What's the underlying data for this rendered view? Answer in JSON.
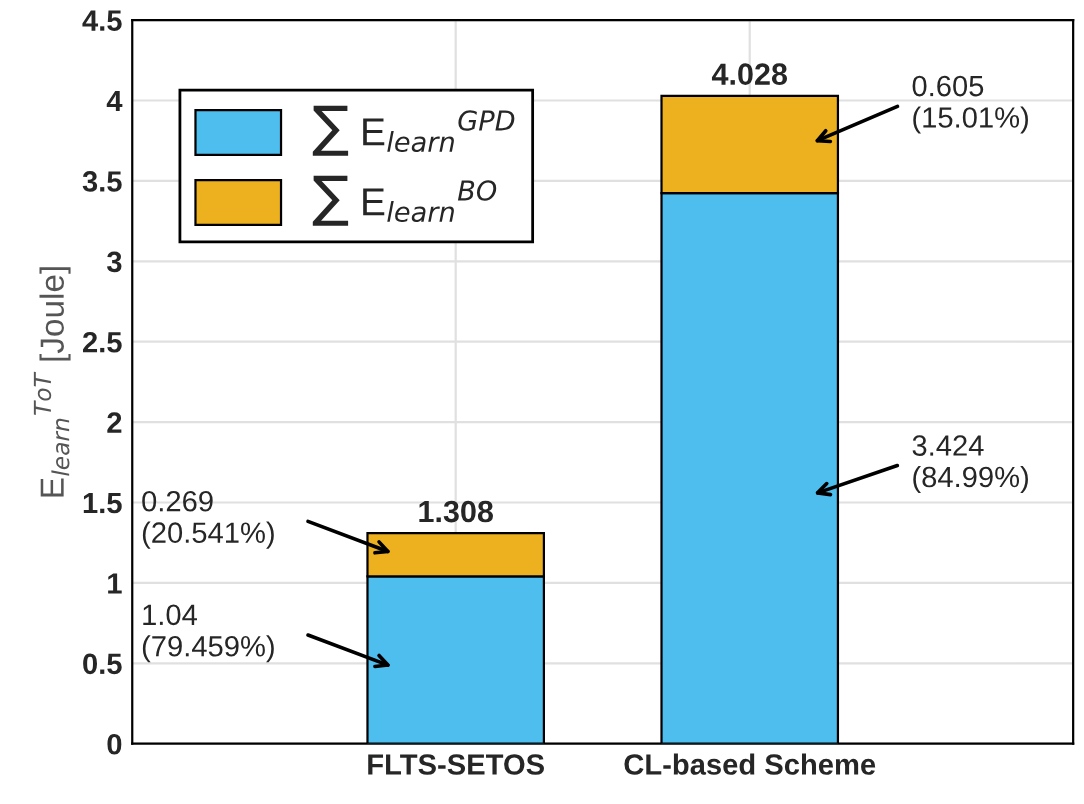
{
  "chart_data": {
    "type": "bar",
    "stacked": true,
    "categories": [
      "FLTS-SETOS",
      "CL-based Scheme"
    ],
    "ylabel": "E$_{learn}$$^{ToT}$ [Joule]",
    "series": [
      {
        "name": "∑ E$_{learn}$$^{GPD}$",
        "color": "#4dbeee",
        "values": [
          1.04,
          3.424
        ],
        "value_labels": [
          "1.04\n(79.459%)",
          "3.424\n(84.99%)"
        ]
      },
      {
        "name": "∑ E$_{learn}$$^{BO}$",
        "color": "#edb120",
        "values": [
          0.269,
          0.605
        ],
        "value_labels": [
          "0.269\n(20.541%)",
          "0.605\n(15.01%)"
        ]
      }
    ],
    "totals": [
      "1.308",
      "4.028"
    ],
    "ylim": [
      0,
      4.5
    ],
    "yticks": [
      0,
      0.5,
      1,
      1.5,
      2,
      2.5,
      3,
      3.5,
      4,
      4.5
    ],
    "grid": true,
    "legend": "top left"
  }
}
